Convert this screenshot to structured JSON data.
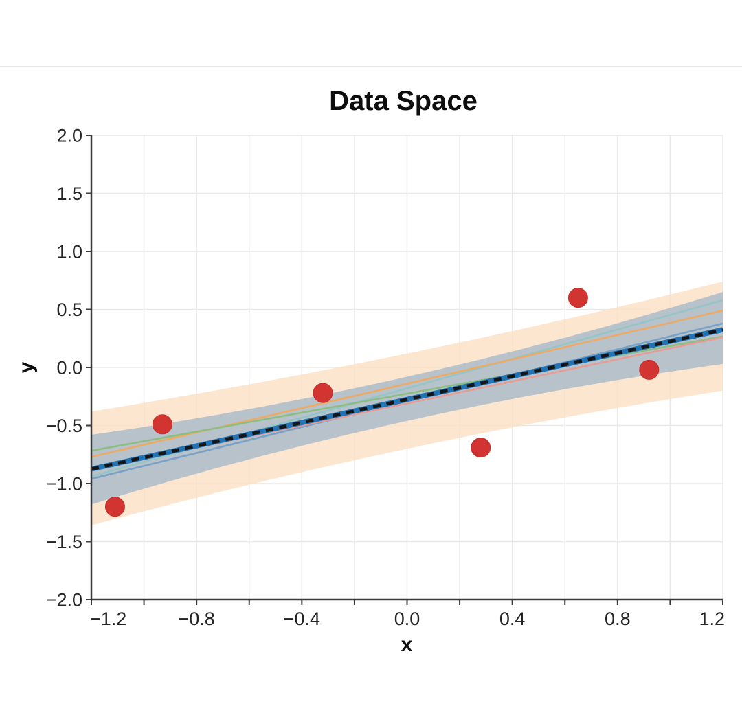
{
  "page": {
    "background": "#ffffff",
    "top_divider_color": "#e6e8eb"
  },
  "chart_data": {
    "type": "scatter",
    "title": "Data Space",
    "xlabel": "x",
    "ylabel": "y",
    "xlim": [
      -1.2,
      1.2
    ],
    "ylim": [
      -2.0,
      2.0
    ],
    "grid": true,
    "grid_color": "#e8e8e8",
    "axis_color": "#3a3a3a",
    "x_grid_values": [
      -1.2,
      -1.0,
      -0.8,
      -0.6,
      -0.4,
      -0.2,
      0.0,
      0.2,
      0.4,
      0.6,
      0.8,
      1.0,
      1.2
    ],
    "x_tick_values": [
      -1.2,
      -0.8,
      -0.4,
      0.0,
      0.4,
      0.8,
      1.2
    ],
    "x_tick_labels": [
      "−1.2",
      "−0.8",
      "−0.4",
      "0.0",
      "0.4",
      "0.8",
      "1.2"
    ],
    "y_tick_values": [
      2.0,
      1.5,
      1.0,
      0.5,
      0.0,
      -0.5,
      -1.0,
      -1.5,
      -2.0
    ],
    "y_tick_labels": [
      "2.0",
      "1.5",
      "1.0",
      "0.5",
      "0.0",
      "−0.5",
      "−1.0",
      "−1.5",
      "−2.0"
    ],
    "scatter_points": {
      "color": "#d23431",
      "edge_color": "#c42f2c",
      "points": [
        {
          "x": -1.11,
          "y": -1.2
        },
        {
          "x": -0.93,
          "y": -0.49
        },
        {
          "x": -0.32,
          "y": -0.22
        },
        {
          "x": 0.28,
          "y": -0.69
        },
        {
          "x": 0.65,
          "y": 0.6
        },
        {
          "x": 0.92,
          "y": -0.02
        }
      ]
    },
    "mean_line": {
      "slope": 0.5,
      "intercept": -0.275,
      "line_color": "#2173b3",
      "dash_color": "#151515",
      "style": "black dashed over thick blue"
    },
    "sample_lines": [
      {
        "name": "sample-teal",
        "color": "#95c5c6",
        "slope": 0.633,
        "intercept": -0.18
      },
      {
        "name": "sample-orange",
        "color": "#eeaa62",
        "slope": 0.525,
        "intercept": -0.14
      },
      {
        "name": "sample-green",
        "color": "#8cbe82",
        "slope": 0.41,
        "intercept": -0.225
      },
      {
        "name": "sample-steelblue",
        "color": "#7aa1c6",
        "slope": 0.558,
        "intercept": -0.29
      },
      {
        "name": "sample-pink",
        "color": "#e69c96",
        "slope": 0.475,
        "intercept": -0.31
      }
    ],
    "bands": [
      {
        "name": "outer-predictive-band",
        "color": "#fbe0c4",
        "opacity": 0.8,
        "top": {
          "left": -0.38,
          "mid": 0.12,
          "right": 0.74
        },
        "bottom": {
          "left": -1.36,
          "mid": -0.7,
          "right": -0.2
        }
      },
      {
        "name": "inner-confidence-band",
        "color": "#afbec9",
        "opacity": 0.9,
        "top": {
          "left": -0.58,
          "mid": -0.08,
          "right": 0.65
        },
        "bottom": {
          "left": -1.18,
          "mid": -0.46,
          "right": 0.03
        }
      }
    ]
  }
}
